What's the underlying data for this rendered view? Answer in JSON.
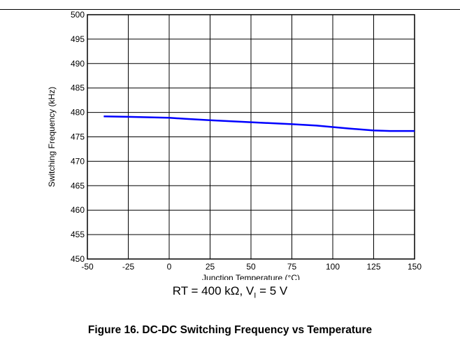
{
  "chart_data": {
    "type": "line",
    "xlabel": "Junction Temperature (°C)",
    "ylabel": "Switching Frequency (kHz)",
    "xlim": [
      -50,
      150
    ],
    "ylim": [
      450,
      500
    ],
    "x_ticks": [
      "-50",
      "-25",
      "0",
      "25",
      "50",
      "75",
      "100",
      "125",
      "150"
    ],
    "y_ticks": [
      "450",
      "455",
      "460",
      "465",
      "470",
      "475",
      "480",
      "485",
      "490",
      "495",
      "500"
    ],
    "grid": true,
    "line_color": "#0000ff",
    "series": [
      {
        "x": [
          -40,
          -25,
          0,
          10,
          25,
          50,
          75,
          90,
          100,
          110,
          125,
          135,
          150
        ],
        "values": [
          479.2,
          479.1,
          478.9,
          478.7,
          478.4,
          478.0,
          477.6,
          477.3,
          477.0,
          476.7,
          476.3,
          476.2,
          476.2
        ]
      }
    ]
  },
  "condition": {
    "prefix": "RT = 400 kΩ, V",
    "subscript": "I",
    "suffix": " = 5 V"
  },
  "caption": "Figure 16. DC-DC Switching Frequency vs Temperature"
}
